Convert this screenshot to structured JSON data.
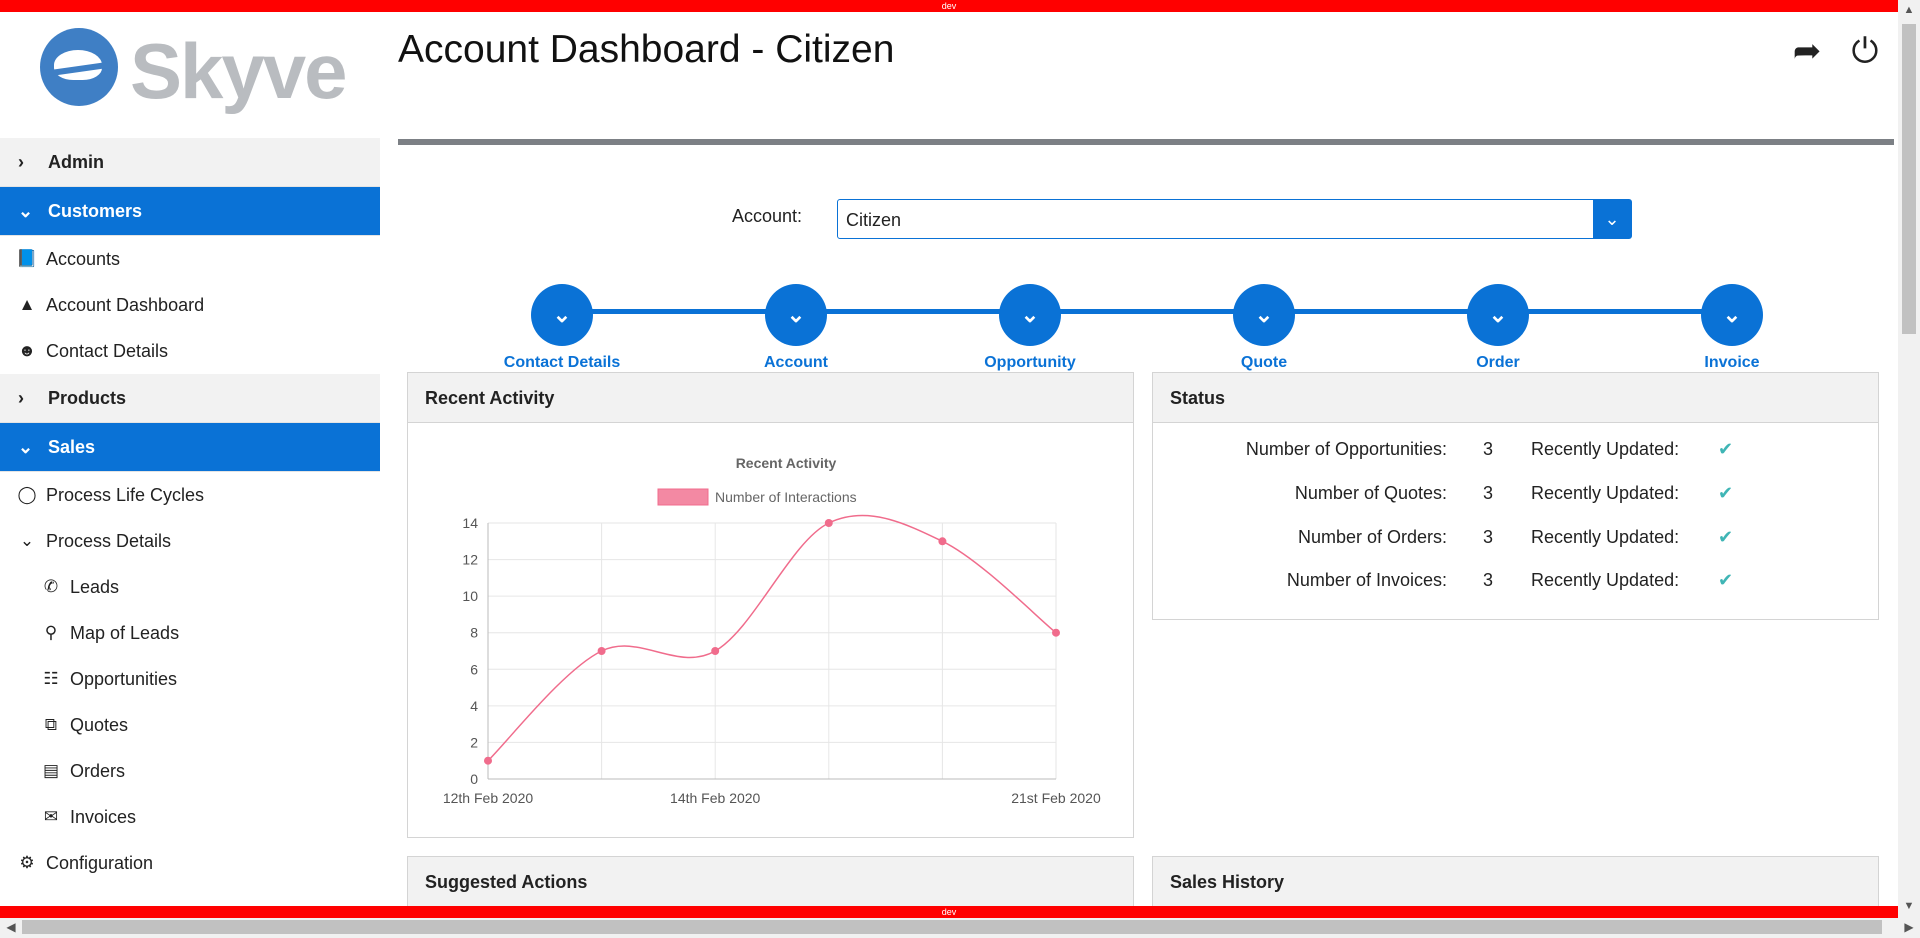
{
  "devbar": {
    "label": "dev"
  },
  "logo": {
    "text": "Skyve"
  },
  "sidebar": {
    "admin": "Admin",
    "customers": "Customers",
    "accounts": "Accounts",
    "account_dashboard": "Account Dashboard",
    "contact_details": "Contact Details",
    "products": "Products",
    "sales": "Sales",
    "process_life_cycles": "Process Life Cycles",
    "process_details": "Process Details",
    "leads": "Leads",
    "map_of_leads": "Map of Leads",
    "opportunities": "Opportunities",
    "quotes": "Quotes",
    "orders": "Orders",
    "invoices": "Invoices",
    "configuration": "Configuration"
  },
  "header": {
    "title": "Account Dashboard - Citizen"
  },
  "account": {
    "label": "Account:",
    "value": "Citizen"
  },
  "steps": [
    "Contact Details",
    "Account",
    "Opportunity",
    "Quote",
    "Order",
    "Invoice"
  ],
  "panels": {
    "recent_activity": "Recent Activity",
    "status": "Status",
    "suggested_actions": "Suggested Actions",
    "sales_history": "Sales History"
  },
  "status": {
    "rows": [
      {
        "label": "Number of Opportunities:",
        "value": "3",
        "recent": "Recently Updated:"
      },
      {
        "label": "Number of Quotes:",
        "value": "3",
        "recent": "Recently Updated:"
      },
      {
        "label": "Number of Orders:",
        "value": "3",
        "recent": "Recently Updated:"
      },
      {
        "label": "Number of Invoices:",
        "value": "3",
        "recent": "Recently Updated:"
      }
    ]
  },
  "colors": {
    "accent": "#0a72d6",
    "series": "#f06c8c",
    "check": "#3fb5b5"
  },
  "chart_data": {
    "type": "line",
    "title": "Recent Activity",
    "series": [
      {
        "name": "Number of Interactions",
        "values": [
          1,
          7,
          7,
          14,
          13,
          8
        ]
      }
    ],
    "x": [
      0,
      2,
      4,
      6,
      8,
      10
    ],
    "x_tick_labels": [
      "12th Feb 2020",
      "14th Feb 2020",
      "21st Feb 2020"
    ],
    "y_ticks": [
      0,
      2,
      4,
      6,
      8,
      10,
      12,
      14
    ],
    "ylim": [
      0,
      14
    ],
    "legend": "top",
    "grid": true
  }
}
